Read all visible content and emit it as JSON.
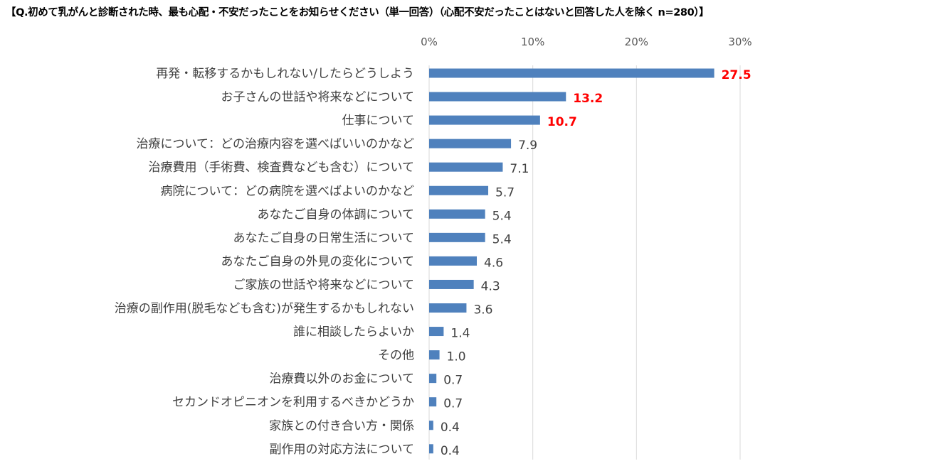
{
  "chart_data": {
    "type": "bar",
    "orientation": "horizontal",
    "title": "【Q.初めて乳がんと診断された時、最も心配・不安だったことをお知らせください（単一回答）（心配不安だったことはないと回答した人を除く n=280）】",
    "xlim": [
      0,
      30
    ],
    "ticks": [
      0,
      10,
      20,
      30
    ],
    "tick_labels": [
      "0%",
      "10%",
      "20%",
      "30%"
    ],
    "tick_position": "top",
    "grid": true,
    "categories": [
      "再発・転移するかもしれない/したらどうしよう",
      "お子さんの世話や将来などについて",
      "仕事について",
      "治療について：どの治療内容を選べばいいのかなど",
      "治療費用（手術費、検査費なども含む）について",
      "病院について：どの病院を選べばよいのかなど",
      "あなたご自身の体調について",
      "あなたご自身の日常生活について",
      "あなたご自身の外見の変化について",
      "ご家族の世話や将来などについて",
      "治療の副作用(脱毛なども含む)が発生するかもしれない",
      "誰に相談したらよいか",
      "その他",
      "治療費以外のお金について",
      "セカンドオピニオンを利用するべきかどうか",
      "家族との付き合い方・関係",
      "副作用の対応方法について"
    ],
    "values": [
      27.5,
      13.2,
      10.7,
      7.9,
      7.1,
      5.7,
      5.4,
      5.4,
      4.6,
      4.3,
      3.6,
      1.4,
      1.0,
      0.7,
      0.7,
      0.4,
      0.4
    ],
    "value_labels": [
      "27.5",
      "13.2",
      "10.7",
      "7.9",
      "7.1",
      "5.7",
      "5.4",
      "5.4",
      "4.6",
      "4.3",
      "3.6",
      "1.4",
      "1.0",
      "0.7",
      "0.7",
      "0.4",
      "0.4"
    ],
    "highlighted_count": 3,
    "colors": {
      "bar": "#4f81bd",
      "grid": "#d9d9d9",
      "highlight_label": "#ff0000",
      "label": "#404040",
      "tick": "#595959"
    }
  }
}
